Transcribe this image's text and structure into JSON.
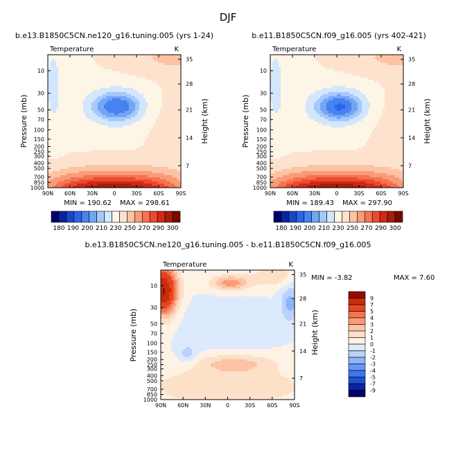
{
  "figure": {
    "title": "DJF"
  },
  "colors": {
    "abs_levels": [
      "#00006e",
      "#0a23a0",
      "#1946c8",
      "#2d64e6",
      "#4682f0",
      "#73a5f5",
      "#a5c8fa",
      "#d2e6fd",
      "#fdf5e6",
      "#fde2cd",
      "#fcc3a5",
      "#fa9b78",
      "#f57350",
      "#eb4b2d",
      "#d22814",
      "#a51e0a",
      "#780a00"
    ],
    "diff_levels": [
      "#00006e",
      "#0a23a0",
      "#1e50d2",
      "#3c78eb",
      "#6496f5",
      "#8cb4fa",
      "#b9d2fc",
      "#dde9fd",
      "#fdf2e4",
      "#fde0c8",
      "#fcc3a5",
      "#fa9b78",
      "#f57350",
      "#e6461e",
      "#c82d0a",
      "#960a00"
    ]
  },
  "chart_data": [
    {
      "id": "panel-left",
      "type": "contour",
      "title": "b.e13.B1850C5CN.ne120_g16.tuning.005 (yrs 1-24)",
      "subtitle": "Temperature",
      "units": "K",
      "xlabel": "",
      "ylabel": "Pressure (mb)",
      "ylabel_right": "Height (km)",
      "x_ticks": [
        "90N",
        "60N",
        "30N",
        "0",
        "30S",
        "60S",
        "90S"
      ],
      "y_ticks": [
        "10",
        "30",
        "50",
        "70",
        "100",
        "150",
        "200",
        "250",
        "300",
        "400",
        "500",
        "700",
        "850",
        "1000"
      ],
      "y_right_ticks": [
        "35",
        "28",
        "21",
        "14",
        "7"
      ],
      "min_label": "MIN = 190.62",
      "max_label": "MAX = 298.61",
      "min": 190.62,
      "max": 298.61,
      "colorbar_labels": [
        "180",
        "190",
        "200",
        "210",
        "230",
        "250",
        "270",
        "290",
        "300"
      ],
      "field": "abs"
    },
    {
      "id": "panel-right",
      "type": "contour",
      "title": "b.e11.B1850C5CN.f09_g16.005 (yrs 402-421)",
      "subtitle": "Temperature",
      "units": "K",
      "xlabel": "",
      "ylabel": "Pressure (mb)",
      "ylabel_right": "Height (km)",
      "x_ticks": [
        "90N",
        "60N",
        "30N",
        "0",
        "30S",
        "60S",
        "90S"
      ],
      "y_ticks": [
        "10",
        "30",
        "50",
        "70",
        "100",
        "150",
        "200",
        "250",
        "300",
        "400",
        "500",
        "700",
        "850",
        "1000"
      ],
      "y_right_ticks": [
        "35",
        "28",
        "21",
        "14",
        "7"
      ],
      "min_label": "MIN = 189.43",
      "max_label": "MAX = 297.90",
      "min": 189.43,
      "max": 297.9,
      "colorbar_labels": [
        "180",
        "190",
        "200",
        "210",
        "230",
        "250",
        "270",
        "290",
        "300"
      ],
      "field": "abs"
    },
    {
      "id": "panel-diff",
      "type": "contour",
      "title": "b.e13.B1850C5CN.ne120_g16.tuning.005 - b.e11.B1850C5CN.f09_g16.005",
      "subtitle": "Temperature",
      "units": "K",
      "xlabel": "",
      "ylabel": "Pressure (mb)",
      "ylabel_right": "Height (km)",
      "x_ticks": [
        "90N",
        "60N",
        "30N",
        "0",
        "30S",
        "60S",
        "90S"
      ],
      "y_ticks": [
        "10",
        "30",
        "50",
        "70",
        "100",
        "150",
        "200",
        "250",
        "300",
        "400",
        "500",
        "700",
        "850",
        "1000"
      ],
      "y_right_ticks": [
        "35",
        "28",
        "21",
        "14",
        "7"
      ],
      "min_label": "MIN =   -3.82",
      "max_label": "MAX =    7.60",
      "min": -3.82,
      "max": 7.6,
      "colorbar_labels": [
        "9",
        "7",
        "5",
        "4",
        "3",
        "2",
        "1",
        "0",
        "-1",
        "-2",
        "-3",
        "-4",
        "-5",
        "-7",
        "-9"
      ],
      "field": "diff"
    }
  ]
}
